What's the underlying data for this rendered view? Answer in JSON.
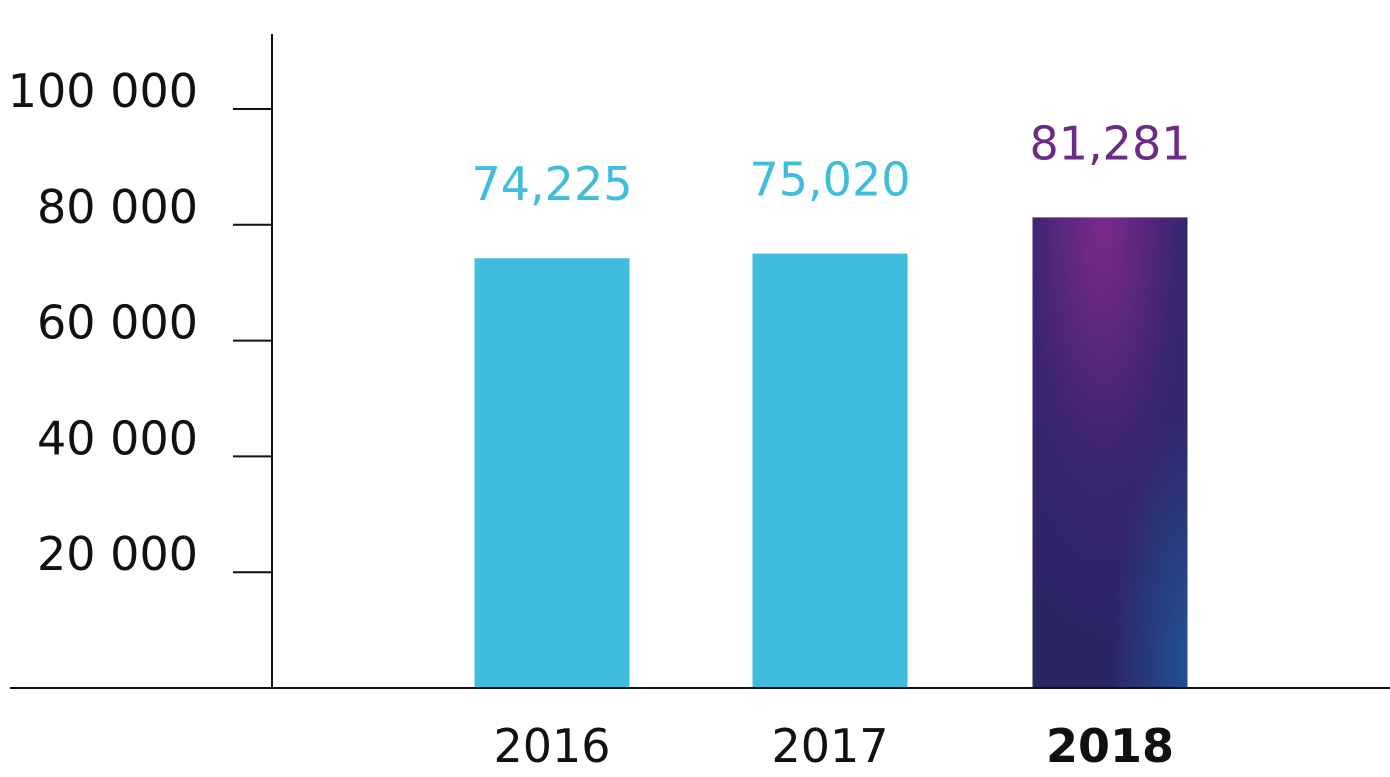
{
  "chart_data": {
    "type": "bar",
    "categories": [
      "2016",
      "2017",
      "2018"
    ],
    "values": [
      74225,
      75020,
      81281
    ],
    "value_labels": [
      "74,225",
      "75,020",
      "81,281"
    ],
    "y_ticks": [
      20000,
      40000,
      60000,
      80000,
      100000
    ],
    "y_tick_labels": [
      "20 000",
      "40 000",
      "60 000",
      "80 000",
      "100 000"
    ],
    "ylim": [
      0,
      110000
    ],
    "highlight_category": "2018",
    "grid": false,
    "colors": {
      "bar": "#40bcdc",
      "highlight_top": "#7b2a8c",
      "highlight_mid": "#3a2570",
      "highlight_bottom": "#2a2565",
      "highlight_accent": "#22589a",
      "value_label": "#40bcdc",
      "highlight_label": "#6a2c84",
      "axis": "#111111"
    }
  }
}
